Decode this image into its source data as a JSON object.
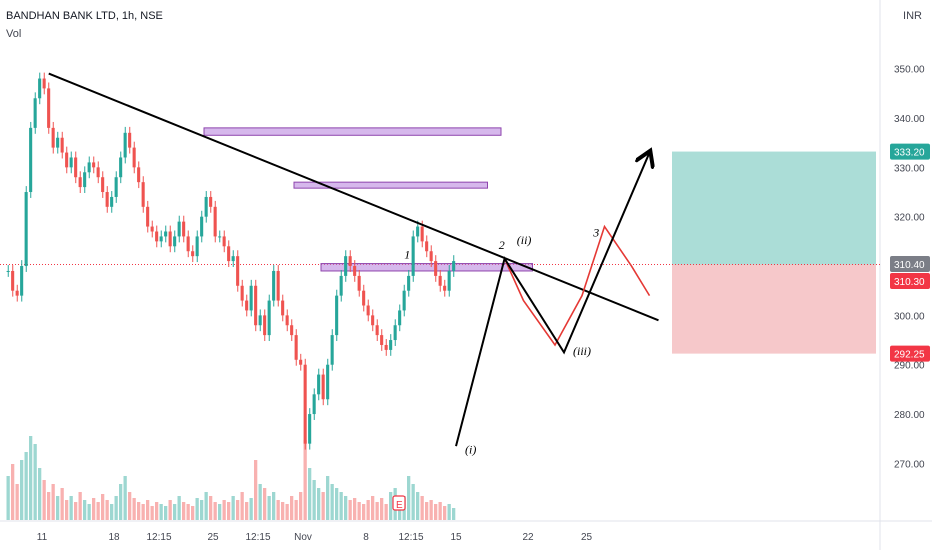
{
  "header": {
    "title": "BANDHAN BANK LTD, 1h, NSE",
    "indicator": "Vol",
    "currency": "INR"
  },
  "colors": {
    "up": "#26a69a",
    "down": "#ef5350",
    "zone_fill": "#b57edc",
    "zone_stroke": "#8e44ad",
    "target_fill": "#8fd1c9",
    "stop_fill": "#f3b6b8",
    "wave_red": "#e53935",
    "badge_green": "#26a69a",
    "badge_red": "#f23645",
    "badge_gray": "#7b7e87"
  },
  "chart_data": {
    "type": "candlestick",
    "symbol": "BANDHAN BANK LTD",
    "interval": "1h",
    "exchange": "NSE",
    "y_unit": "INR",
    "ylim": [
      264,
      355
    ],
    "y_ticks": [
      270,
      280,
      290,
      300,
      310,
      320,
      330,
      340,
      350
    ],
    "y_tick_labels": [
      "270.00",
      "280.00",
      "290.00",
      "300.00",
      "310.00",
      "320.00",
      "330.00",
      "340.00",
      "350.00"
    ],
    "x_tick_labels": [
      "11",
      "18",
      "12:15",
      "25",
      "12:15",
      "Nov",
      "8",
      "12:15",
      "15",
      "22",
      "25"
    ],
    "x_tick_index": [
      8,
      24,
      34,
      46,
      56,
      66,
      80,
      90,
      100,
      116,
      129
    ],
    "x_bars_visible": 141,
    "last_bar_index": 99,
    "close_series": [
      309,
      305,
      304,
      310,
      325,
      338,
      344,
      348,
      346,
      338,
      334,
      336,
      333,
      330,
      332,
      328,
      326,
      329,
      331,
      330,
      328,
      325,
      322,
      324,
      328,
      332,
      337,
      334,
      330,
      327,
      322,
      318,
      317,
      315,
      316,
      317,
      314,
      316,
      319,
      316,
      313,
      312,
      316,
      320,
      324,
      322,
      316,
      316,
      314,
      311,
      312,
      306,
      303,
      301,
      306,
      298,
      300,
      296,
      303,
      309,
      303,
      300,
      298,
      296,
      291,
      290,
      274,
      280,
      284,
      288,
      283,
      290,
      296,
      304,
      308,
      312,
      310,
      308,
      305,
      302,
      300,
      298,
      296,
      294,
      293,
      295,
      298,
      301,
      305,
      308,
      316,
      318,
      315,
      313,
      311,
      308,
      306,
      305,
      309,
      311
    ],
    "volume": [
      22,
      28,
      18,
      30,
      34,
      42,
      38,
      26,
      20,
      14,
      18,
      12,
      16,
      10,
      12,
      9,
      14,
      10,
      8,
      11,
      9,
      13,
      10,
      8,
      12,
      18,
      22,
      14,
      11,
      9,
      8,
      10,
      7,
      9,
      8,
      7,
      10,
      8,
      12,
      9,
      8,
      7,
      11,
      10,
      14,
      12,
      9,
      8,
      10,
      9,
      12,
      10,
      14,
      9,
      11,
      30,
      18,
      16,
      12,
      14,
      10,
      9,
      8,
      12,
      10,
      14,
      40,
      26,
      20,
      16,
      14,
      22,
      18,
      16,
      14,
      12,
      10,
      11,
      9,
      8,
      10,
      12,
      9,
      11,
      8,
      14,
      16,
      10,
      12,
      22,
      18,
      14,
      12,
      9,
      10,
      8,
      9,
      7,
      8,
      6
    ],
    "resistance_zones": [
      {
        "x_start": 44,
        "x_end": 110,
        "low": 336.5,
        "high": 338
      },
      {
        "x_start": 64,
        "x_end": 107,
        "low": 326,
        "high": 327
      },
      {
        "x_start": 70,
        "x_end": 117,
        "low": 309,
        "high": 310.5
      }
    ],
    "trendline": [
      {
        "x": 9.5,
        "y": 349
      },
      {
        "x": 145,
        "y": 299
      }
    ],
    "wave_path_black": [
      {
        "x": 100,
        "y": 273.5
      },
      {
        "x": 110.8,
        "y": 311.5
      },
      {
        "x": 124,
        "y": 292.5
      },
      {
        "x": 143,
        "y": 333
      }
    ],
    "wave_path_red": [
      {
        "x": 110.8,
        "y": 311.5
      },
      {
        "x": 115,
        "y": 303
      },
      {
        "x": 122,
        "y": 294
      },
      {
        "x": 128,
        "y": 304
      },
      {
        "x": 133,
        "y": 318
      },
      {
        "x": 139,
        "y": 310
      },
      {
        "x": 143,
        "y": 304
      }
    ],
    "wave_labels": [
      {
        "text": "(i)",
        "x": 102,
        "y": 272
      },
      {
        "text": "2",
        "x": 109.5,
        "y": 313.5
      },
      {
        "text": "(ii)",
        "x": 113.5,
        "y": 314.5
      },
      {
        "text": "1",
        "x": 88.5,
        "y": 311.5
      },
      {
        "text": "(iii)",
        "x": 126,
        "y": 292
      },
      {
        "text": "3",
        "x": 130.5,
        "y": 316
      }
    ],
    "position": {
      "entry": 310.3,
      "target": 333.2,
      "stop": 292.25,
      "x_start": 148,
      "x_end": 206
    },
    "price_badges": [
      {
        "value": 333.2,
        "label": "333.20",
        "style": "green"
      },
      {
        "value": 310.4,
        "label": "310.40",
        "style": "gray"
      },
      {
        "value": 310.3,
        "label": "310.30",
        "style": "red"
      },
      {
        "value": 292.25,
        "label": "292.25",
        "style": "red"
      }
    ],
    "grid": false,
    "legend": "none"
  }
}
